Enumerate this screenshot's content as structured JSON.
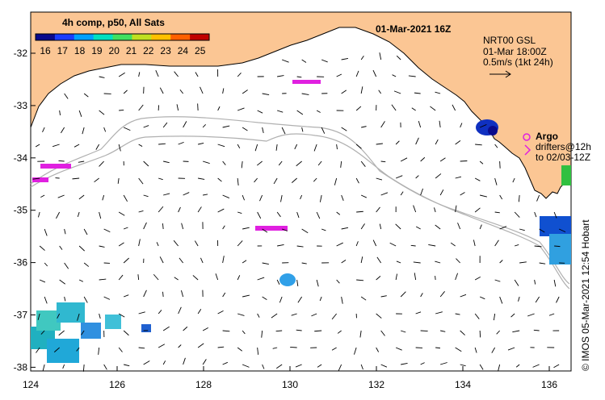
{
  "colorbar": {
    "title": "4h comp, p50, All Sats",
    "ticks": [
      "16",
      "17",
      "18",
      "19",
      "20",
      "21",
      "22",
      "23",
      "24",
      "25"
    ],
    "colors": [
      "#0a0a8c",
      "#1a3cff",
      "#00a0ff",
      "#00e0c0",
      "#40e060",
      "#c0e020",
      "#ffc000",
      "#ff6000",
      "#c00000"
    ]
  },
  "header": {
    "date": "01-Mar-2021 16Z"
  },
  "legend": {
    "line1": "NRT00 GSL",
    "line2": "01-Mar 18:00Z",
    "line3": "0.5m/s (1kt 24h)"
  },
  "argo": {
    "title": "Argo",
    "line1": "drifters@12h",
    "line2": "to 02/03-12Z"
  },
  "axes": {
    "x_ticks": [
      "124",
      "126",
      "128",
      "130",
      "132",
      "134",
      "136"
    ],
    "y_ticks": [
      "-32",
      "-33",
      "-34",
      "-35",
      "-36",
      "-37",
      "-38"
    ]
  },
  "credit": "© IMOS 05-Mar-2021 12:54 Hobart",
  "colors": {
    "land": "#fbc694",
    "isobath": "#b0b0b0",
    "drifter": "#e020e0"
  }
}
